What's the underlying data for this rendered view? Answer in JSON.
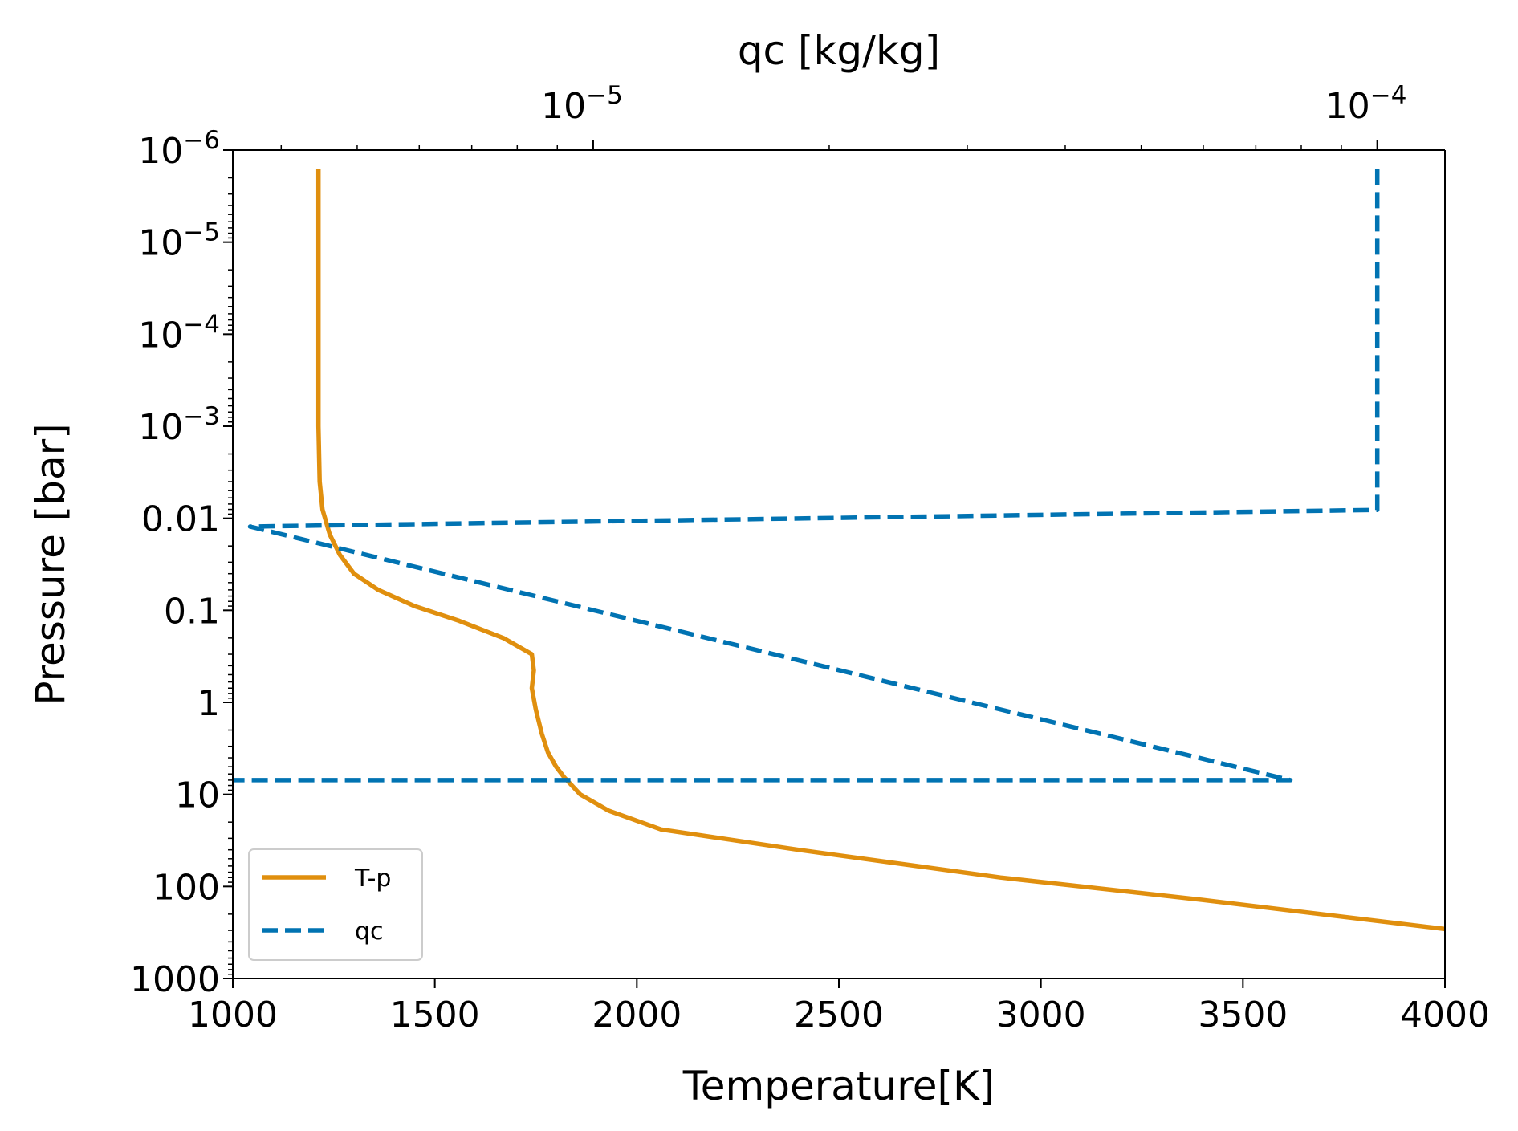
{
  "chart_data": {
    "type": "line",
    "xlabel": "Temperature[K]",
    "ylabel": "Pressure [bar]",
    "top_xlabel": "qᴄ [kg/kg]",
    "xlim": [
      1000,
      4000
    ],
    "ylim": [
      1e-06,
      1000
    ],
    "y_scale": "log",
    "y_inverted": true,
    "top_x_scale": "log",
    "top_xlim": [
      3.47e-06,
      0.000122
    ],
    "x_ticks": [
      1000,
      1500,
      2000,
      2500,
      3000,
      3500,
      4000
    ],
    "x_tick_labels": [
      "1000",
      "1500",
      "2000",
      "2500",
      "3000",
      "3500",
      "4000"
    ],
    "y_ticks": [
      {
        "value": 1e-06,
        "base": "10",
        "exp": "−6",
        "label": ""
      },
      {
        "value": 1e-05,
        "base": "10",
        "exp": "−5",
        "label": ""
      },
      {
        "value": 0.0001,
        "base": "10",
        "exp": "−4",
        "label": ""
      },
      {
        "value": 0.001,
        "base": "10",
        "exp": "−3",
        "label": ""
      },
      {
        "value": 0.01,
        "base": "",
        "exp": "",
        "label": "0.01"
      },
      {
        "value": 0.1,
        "base": "",
        "exp": "",
        "label": "0.1"
      },
      {
        "value": 1,
        "base": "",
        "exp": "",
        "label": "1"
      },
      {
        "value": 10,
        "base": "",
        "exp": "",
        "label": "10"
      },
      {
        "value": 100,
        "base": "",
        "exp": "",
        "label": "100"
      },
      {
        "value": 1000,
        "base": "",
        "exp": "",
        "label": "1000"
      }
    ],
    "top_x_ticks": [
      {
        "value": 1e-05,
        "base": "10",
        "exp": "−5"
      },
      {
        "value": 0.0001,
        "base": "10",
        "exp": "−4"
      }
    ],
    "series": [
      {
        "name": "T-p",
        "axis": "bottom",
        "color": "#E08F0E",
        "style": "solid",
        "points": [
          [
            1212,
            1.6e-06
          ],
          [
            1212,
            1e-05
          ],
          [
            1212,
            0.0001
          ],
          [
            1212,
            0.001
          ],
          [
            1215,
            0.004
          ],
          [
            1222,
            0.008
          ],
          [
            1240,
            0.015
          ],
          [
            1265,
            0.025
          ],
          [
            1300,
            0.04
          ],
          [
            1360,
            0.06
          ],
          [
            1450,
            0.09
          ],
          [
            1560,
            0.13
          ],
          [
            1670,
            0.2
          ],
          [
            1740,
            0.3
          ],
          [
            1745,
            0.45
          ],
          [
            1740,
            0.7
          ],
          [
            1750,
            1.2
          ],
          [
            1765,
            2.2
          ],
          [
            1780,
            3.5
          ],
          [
            1800,
            5.0
          ],
          [
            1820,
            6.5
          ],
          [
            1860,
            10
          ],
          [
            1930,
            15
          ],
          [
            2060,
            24
          ],
          [
            2400,
            40
          ],
          [
            2900,
            80
          ],
          [
            3400,
            140
          ],
          [
            4000,
            290
          ]
        ]
      },
      {
        "name": "qᴄ",
        "axis": "top",
        "color": "#0173B2",
        "style": "dashed",
        "points": [
          [
            0.0001,
            1.6e-06
          ],
          [
            0.0001,
            0.0081
          ],
          [
            3.65e-06,
            0.0123
          ],
          [
            7.75e-05,
            7.0
          ],
          [
            3.47e-06,
            7.0
          ]
        ]
      }
    ],
    "legend": {
      "position": "lower-left",
      "entries": [
        {
          "label": "T-p",
          "color": "#E08F0E",
          "style": "solid"
        },
        {
          "label": "qᴄ",
          "color": "#0173B2",
          "style": "dashed"
        }
      ]
    }
  }
}
